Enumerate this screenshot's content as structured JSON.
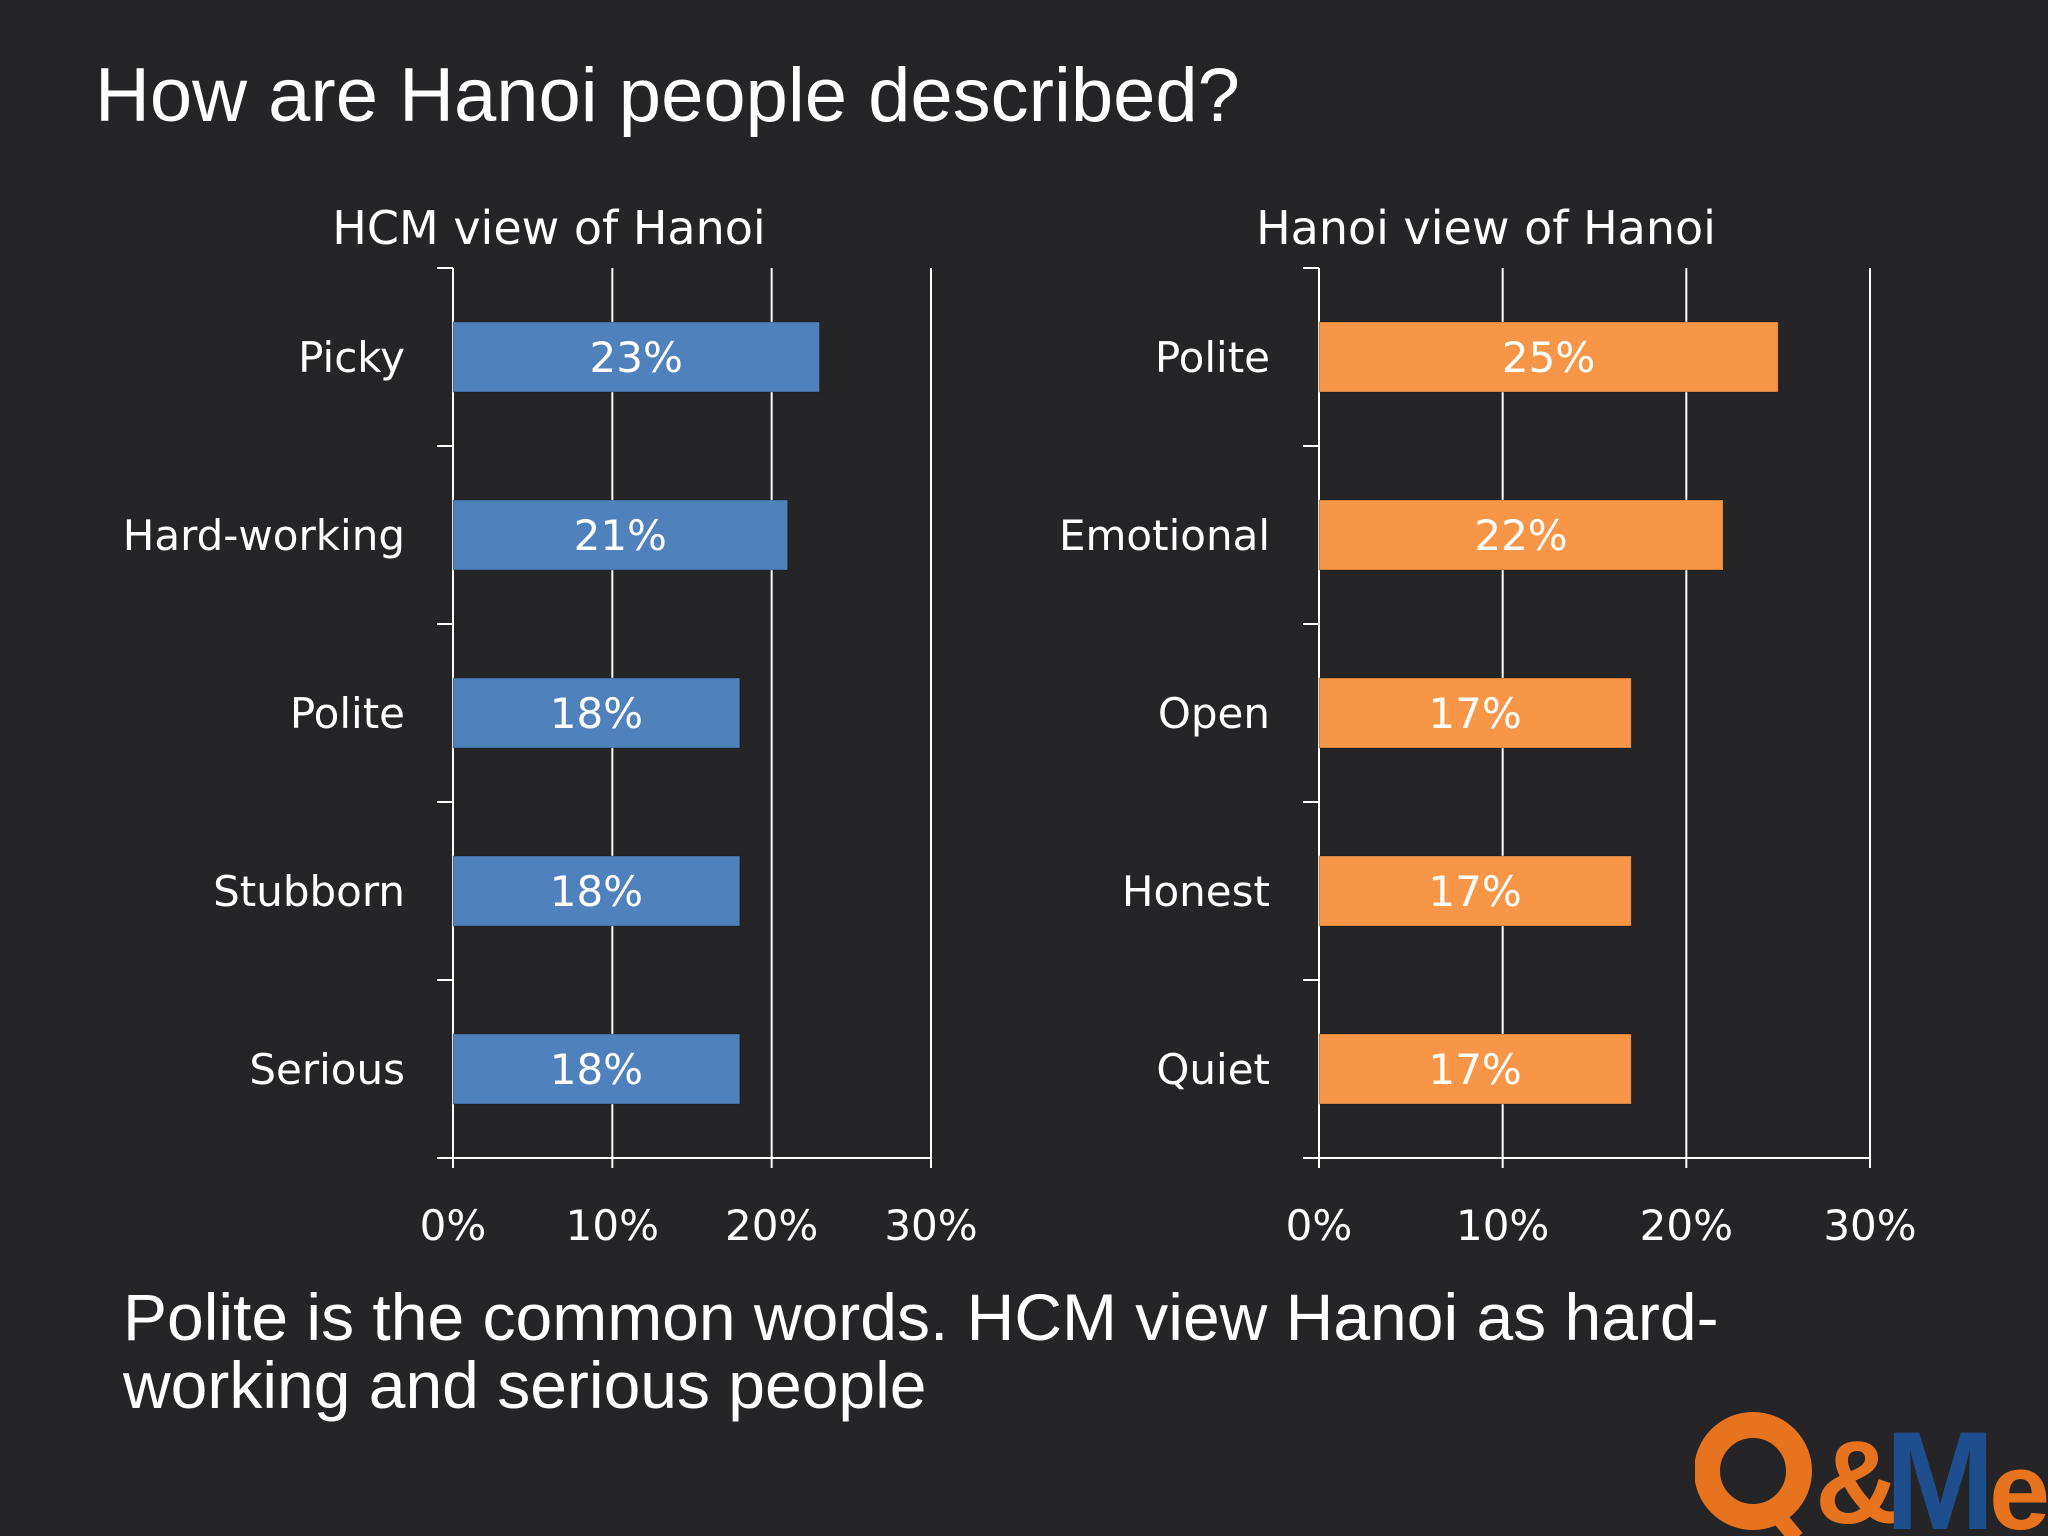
{
  "slide": {
    "title": "How are Hanoi people described?",
    "caption": "Polite is the common words. HCM view Hanoi as hard-working and serious people",
    "logo_text": "Q&Me"
  },
  "colors": {
    "background": "#252527",
    "series_blue": "#4f81bd",
    "series_orange": "#f79646",
    "axis": "#ffffff",
    "logo_orange": "#e8731f",
    "logo_blue": "#1f4e8f"
  },
  "chart_data": [
    {
      "type": "bar",
      "orientation": "horizontal",
      "title": "HCM view of Hanoi",
      "categories": [
        "Picky",
        "Hard-working",
        "Polite",
        "Stubborn",
        "Serious"
      ],
      "values": [
        23,
        21,
        18,
        18,
        18
      ],
      "value_labels": [
        "23%",
        "21%",
        "18%",
        "18%",
        "18%"
      ],
      "xlim": [
        0,
        30
      ],
      "xticks": [
        "0%",
        "10%",
        "20%",
        "30%"
      ],
      "grid": "vertical",
      "color": "#4f81bd"
    },
    {
      "type": "bar",
      "orientation": "horizontal",
      "title": "Hanoi view of Hanoi",
      "categories": [
        "Polite",
        "Emotional",
        "Open",
        "Honest",
        "Quiet"
      ],
      "values": [
        25,
        22,
        17,
        17,
        17
      ],
      "value_labels": [
        "25%",
        "22%",
        "17%",
        "17%",
        "17%"
      ],
      "xlim": [
        0,
        30
      ],
      "xticks": [
        "0%",
        "10%",
        "20%",
        "30%"
      ],
      "grid": "vertical",
      "color": "#f79646"
    }
  ]
}
